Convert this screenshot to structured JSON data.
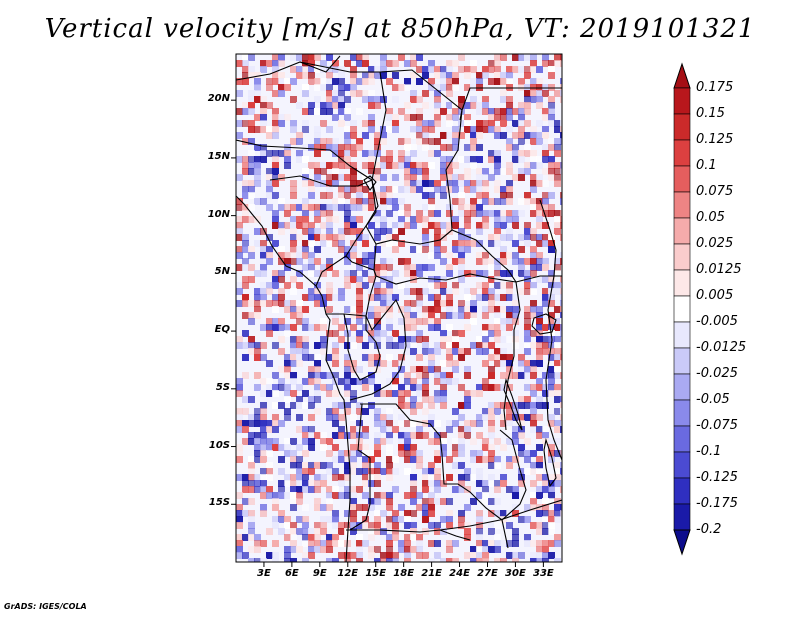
{
  "title": "Vertical velocity [m/s] at 850hPa, VT: 2019101321",
  "credit": "GrADS: IGES/COLA",
  "chart_data": {
    "type": "heatmap",
    "variable": "Vertical velocity",
    "units": "m/s",
    "level": "850hPa",
    "valid_time": "2019101321",
    "lon_range": [
      0,
      35
    ],
    "lat_range": [
      -20,
      24
    ],
    "y_ticks": [
      {
        "label": "20N",
        "lat": 20
      },
      {
        "label": "15N",
        "lat": 15
      },
      {
        "label": "10N",
        "lat": 10
      },
      {
        "label": "5N",
        "lat": 5
      },
      {
        "label": "EQ",
        "lat": 0
      },
      {
        "label": "5S",
        "lat": -5
      },
      {
        "label": "10S",
        "lat": -10
      },
      {
        "label": "15S",
        "lat": -15
      }
    ],
    "x_ticks": [
      {
        "label": "3E",
        "lon": 3
      },
      {
        "label": "6E",
        "lon": 6
      },
      {
        "label": "9E",
        "lon": 9
      },
      {
        "label": "12E",
        "lon": 12
      },
      {
        "label": "15E",
        "lon": 15
      },
      {
        "label": "18E",
        "lon": 18
      },
      {
        "label": "21E",
        "lon": 21
      },
      {
        "label": "24E",
        "lon": 24
      },
      {
        "label": "27E",
        "lon": 27
      },
      {
        "label": "30E",
        "lon": 30
      },
      {
        "label": "33E",
        "lon": 33
      }
    ],
    "colorbar": [
      {
        "label": "0.175",
        "color": "#a50f15"
      },
      {
        "label": "0.15",
        "color": "#b8171c"
      },
      {
        "label": "0.125",
        "color": "#cb2a2a"
      },
      {
        "label": "0.1",
        "color": "#dc4040"
      },
      {
        "label": "0.075",
        "color": "#e55e5e"
      },
      {
        "label": "0.05",
        "color": "#ee8484"
      },
      {
        "label": "0.025",
        "color": "#f5abab"
      },
      {
        "label": "0.0125",
        "color": "#facccc"
      },
      {
        "label": "0.005",
        "color": "#fde8e8"
      },
      {
        "label": "-0.005",
        "color": "#ffffff"
      },
      {
        "label": "-0.0125",
        "color": "#e8e8fd"
      },
      {
        "label": "-0.025",
        "color": "#cacaf8"
      },
      {
        "label": "-0.05",
        "color": "#aaaaf2"
      },
      {
        "label": "-0.075",
        "color": "#8a8aeb"
      },
      {
        "label": "-0.1",
        "color": "#6a6ae0"
      },
      {
        "label": "-0.125",
        "color": "#4b4bd2"
      },
      {
        "label": "-0.175",
        "color": "#2f2fc0"
      },
      {
        "label": "-0.2",
        "color": "#1a1aa8"
      }
    ],
    "colorbar_bottom_color": "#0c0c8c"
  }
}
